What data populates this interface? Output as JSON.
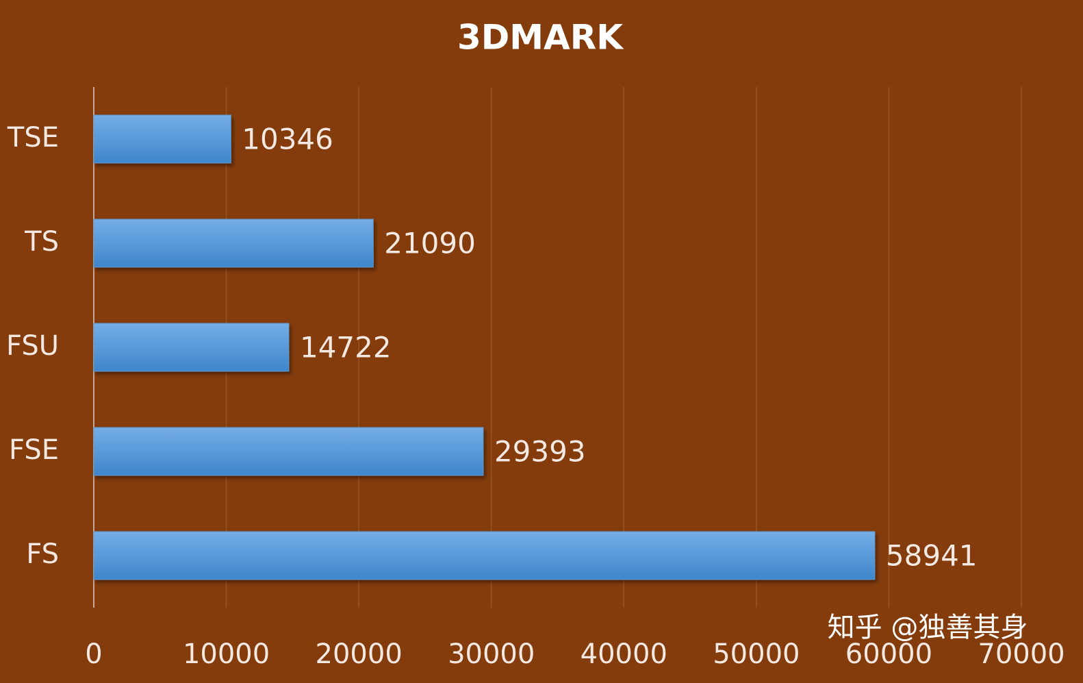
{
  "chart_data": {
    "type": "bar",
    "orientation": "horizontal",
    "title": "3DMARK",
    "categories": [
      "TSE",
      "TS",
      "FSU",
      "FSE",
      "FS"
    ],
    "values": [
      10346,
      21090,
      14722,
      29393,
      58941
    ],
    "color": "#5b9bd5",
    "xlim": [
      0,
      70000
    ],
    "xticks": [
      0,
      10000,
      20000,
      30000,
      40000,
      50000,
      60000,
      70000
    ],
    "grid": true
  },
  "watermark": "知乎 @独善其身"
}
